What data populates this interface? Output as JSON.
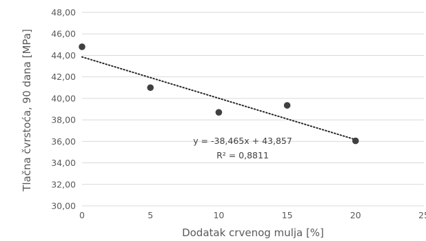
{
  "chart_data": {
    "type": "scatter",
    "xlabel": "Dodatak crvenog mulja [%]",
    "ylabel": "Tlačna čvrstoća, 90 dana [MPa]",
    "xlim": [
      0,
      25
    ],
    "ylim": [
      30,
      48
    ],
    "x_ticks": [
      "0",
      "5",
      "10",
      "15",
      "20",
      "25"
    ],
    "y_ticks": [
      "30,00",
      "32,00",
      "34,00",
      "36,00",
      "38,00",
      "40,00",
      "42,00",
      "44,00",
      "46,00",
      "48,00"
    ],
    "grid": "horizontal",
    "series": [
      {
        "x": [
          0,
          5,
          10,
          15,
          20
        ],
        "y": [
          44.8,
          41.0,
          38.7,
          39.35,
          36.05
        ],
        "color": "#404040"
      }
    ],
    "trendline": {
      "type": "linear",
      "slope": -0.38465,
      "intercept": 43.857,
      "x_range": [
        0,
        20
      ],
      "style": "dotted",
      "color": "#262626"
    },
    "annotations": [
      "y = -38,465x + 43,857",
      "R² = 0,8811"
    ]
  }
}
